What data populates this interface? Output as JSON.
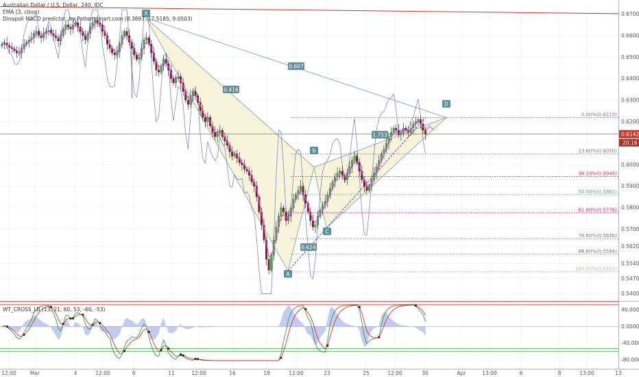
{
  "header": {
    "symbol_line": "Australian Dollar / U.S. Dollar, 240, IDC",
    "ema_line": "EMA (3, close)",
    "macd_line": "Dinapoli MACD predictor, by Patternsmart.com (8.3897, 17.5185, 9.0503)"
  },
  "indicator": {
    "legend": "WT_CROSS_LB (13, 21, 60, 53, -60, -53)",
    "ticks": [
      "40.0000",
      "0.0000",
      "-40.0000",
      "-80.0000"
    ]
  },
  "price_axis": {
    "ticks": [
      "0.6700",
      "0.6600",
      "0.6500",
      "0.6400",
      "0.6300",
      "0.6200",
      "0.6100",
      "0.6000",
      "0.5900",
      "0.5800",
      "0.5700",
      "0.5620",
      "0.5540",
      "0.5470",
      "0.5400"
    ],
    "last_price": "0.6142",
    "countdown": "20:16"
  },
  "time_axis": {
    "labels": [
      "12:00",
      "Mar",
      "4",
      "12:00",
      "9",
      "11",
      "12:00",
      "16",
      "18",
      "12:00",
      "23",
      "25",
      "12:00",
      "30",
      "Apr",
      "13:00",
      "6",
      "8",
      "13:00",
      "13"
    ]
  },
  "pattern": {
    "points": [
      "X",
      "A",
      "B",
      "C",
      "D"
    ],
    "ratios": [
      "0.607",
      "0.416",
      "1.753",
      "0.624"
    ]
  },
  "fib_levels": [
    {
      "label": "0.00%(0.6219)",
      "value": 0.6219,
      "color": "#787b86"
    },
    {
      "label": "23.60%(0.6050)",
      "value": 0.605,
      "color": "#787b86"
    },
    {
      "label": "38.20%(0.5945)",
      "value": 0.5945,
      "color": "#e91e63"
    },
    {
      "label": "50.00%(0.5861)",
      "value": 0.5861,
      "color": "#4caf50"
    },
    {
      "label": "61.80%(0.5776)",
      "value": 0.5776,
      "color": "#e91e63"
    },
    {
      "label": "78.60%(0.5656)",
      "value": 0.5656,
      "color": "#787b86"
    },
    {
      "label": "88.60%(0.5584)",
      "value": 0.5584,
      "color": "#787b86"
    },
    {
      "label": "100.00%(0.5502)",
      "value": 0.5502,
      "color": "#b2b5be"
    }
  ],
  "colors": {
    "bull": "#26a69a",
    "bull_candle": "#4caf50",
    "bear": "#8b1a1a",
    "ema": "#e040fb",
    "macd": "#5c6bc0",
    "pattern_fill": "#f7f3d8",
    "pattern_line": "#8fb3a8",
    "label_bg": "#5f8f99",
    "price_line": "#c0392b",
    "wt_green": "#2e9d3a",
    "wt_red": "#d32f2f"
  },
  "chart_data": {
    "type": "candlestick",
    "instrument": "Australian Dollar / U.S. Dollar",
    "interval": "240",
    "ylim": [
      0.537,
      0.674
    ],
    "last_price": 0.6142,
    "pattern_points": [
      {
        "label": "X",
        "price": 0.6682
      },
      {
        "label": "A",
        "price": 0.5506
      },
      {
        "label": "B",
        "price": 0.5988
      },
      {
        "label": "C",
        "price": 0.5705
      },
      {
        "label": "D",
        "price": 0.6219
      }
    ],
    "pattern_ratios": [
      {
        "between": "X-B",
        "value": 0.607
      },
      {
        "between": "X-A",
        "value": 0.416
      },
      {
        "between": "B-D",
        "value": 1.753
      },
      {
        "between": "A-C",
        "value": 0.624
      }
    ],
    "candles_close": [
      0.656,
      0.6565,
      0.6555,
      0.6545,
      0.654,
      0.653,
      0.652,
      0.652,
      0.654,
      0.656,
      0.657,
      0.658,
      0.659,
      0.661,
      0.662,
      0.66,
      0.659,
      0.661,
      0.662,
      0.6625,
      0.661,
      0.66,
      0.659,
      0.6575,
      0.66,
      0.663,
      0.665,
      0.664,
      0.663,
      0.665,
      0.666,
      0.664,
      0.662,
      0.66,
      0.658,
      0.661,
      0.664,
      0.666,
      0.667,
      0.666,
      0.665,
      0.662,
      0.66,
      0.656,
      0.654,
      0.652,
      0.651,
      0.6525,
      0.656,
      0.66,
      0.662,
      0.66,
      0.657,
      0.654,
      0.651,
      0.649,
      0.65,
      0.654,
      0.658,
      0.659,
      0.656,
      0.652,
      0.648,
      0.644,
      0.643,
      0.646,
      0.649,
      0.647,
      0.644,
      0.64,
      0.638,
      0.64,
      0.641,
      0.638,
      0.634,
      0.63,
      0.628,
      0.632,
      0.634,
      0.632,
      0.629,
      0.625,
      0.622,
      0.62,
      0.622,
      0.618,
      0.615,
      0.613,
      0.615,
      0.616,
      0.613,
      0.611,
      0.609,
      0.606,
      0.604,
      0.605,
      0.603,
      0.601,
      0.6,
      0.598,
      0.597,
      0.595,
      0.592,
      0.59,
      0.585,
      0.578,
      0.572,
      0.565,
      0.556,
      0.551,
      0.558,
      0.565,
      0.571,
      0.576,
      0.58,
      0.578,
      0.574,
      0.576,
      0.58,
      0.584,
      0.586,
      0.588,
      0.59,
      0.586,
      0.582,
      0.578,
      0.574,
      0.571,
      0.572,
      0.576,
      0.579,
      0.581,
      0.583,
      0.586,
      0.589,
      0.592,
      0.594,
      0.596,
      0.597,
      0.595,
      0.593,
      0.596,
      0.599,
      0.602,
      0.604,
      0.601,
      0.597,
      0.593,
      0.59,
      0.588,
      0.59,
      0.593,
      0.596,
      0.599,
      0.602,
      0.605,
      0.607,
      0.61,
      0.613,
      0.615,
      0.617,
      0.616,
      0.614,
      0.615,
      0.617,
      0.616,
      0.615,
      0.617,
      0.619,
      0.62,
      0.621,
      0.619,
      0.616,
      0.6142
    ]
  }
}
